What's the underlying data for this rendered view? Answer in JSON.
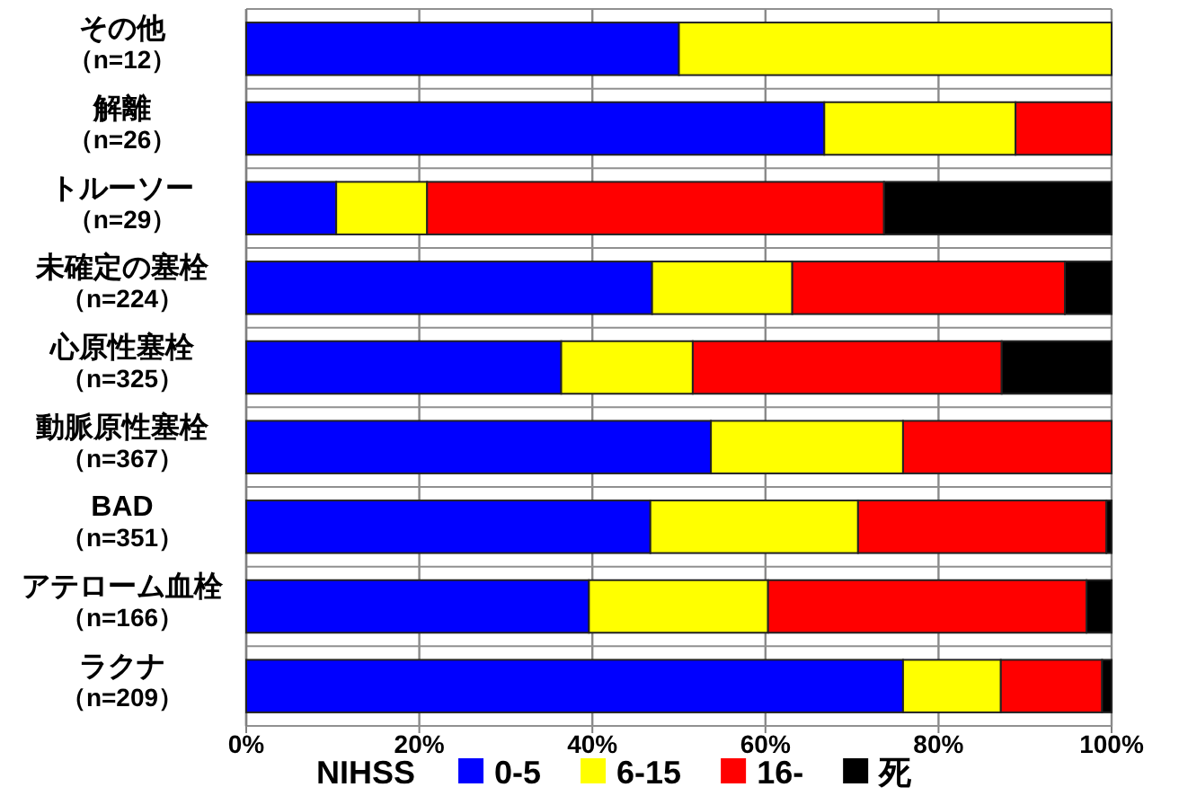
{
  "chart_data": {
    "type": "bar",
    "orientation": "horizontal",
    "stacked": true,
    "categories": [
      "その他（n=12）",
      "解離（n=26）",
      "トルーソー（n=29）",
      "未確定の塞栓（n=224）",
      "心原性塞栓（n=325）",
      "動脈原性塞栓（n=367）",
      "BAD（n=351）",
      "アテローム血栓（n=166）",
      "ラクナ（n=209）"
    ],
    "series": [
      {
        "name": "0-5",
        "color": "#0000ff",
        "values": [
          50,
          66.8,
          10.4,
          46.9,
          36.4,
          53.7,
          46.7,
          39.6,
          75.9
        ]
      },
      {
        "name": "6-15",
        "color": "#ffff00",
        "values": [
          50,
          22.1,
          10.5,
          16.2,
          15.2,
          22.2,
          24.0,
          20.7,
          11.3
        ]
      },
      {
        "name": "16-",
        "color": "#ff0000",
        "values": [
          0,
          11.1,
          52.8,
          31.5,
          35.7,
          24.1,
          28.7,
          36.8,
          11.7
        ]
      },
      {
        "name": "死",
        "color": "#000000",
        "values": [
          0,
          0,
          26.3,
          5.4,
          12.7,
          0,
          0.6,
          2.9,
          1.1
        ]
      }
    ],
    "xlim": [
      0,
      100
    ],
    "xticks": [
      {
        "value": 0,
        "label": "0%"
      },
      {
        "value": 20,
        "label": "20%"
      },
      {
        "value": 40,
        "label": "40%"
      },
      {
        "value": 60,
        "label": "60%"
      },
      {
        "value": 80,
        "label": "80%"
      },
      {
        "value": 100,
        "label": "100%"
      }
    ],
    "grid": "x",
    "legend": "bottom",
    "legend_title": "NIHSS"
  }
}
